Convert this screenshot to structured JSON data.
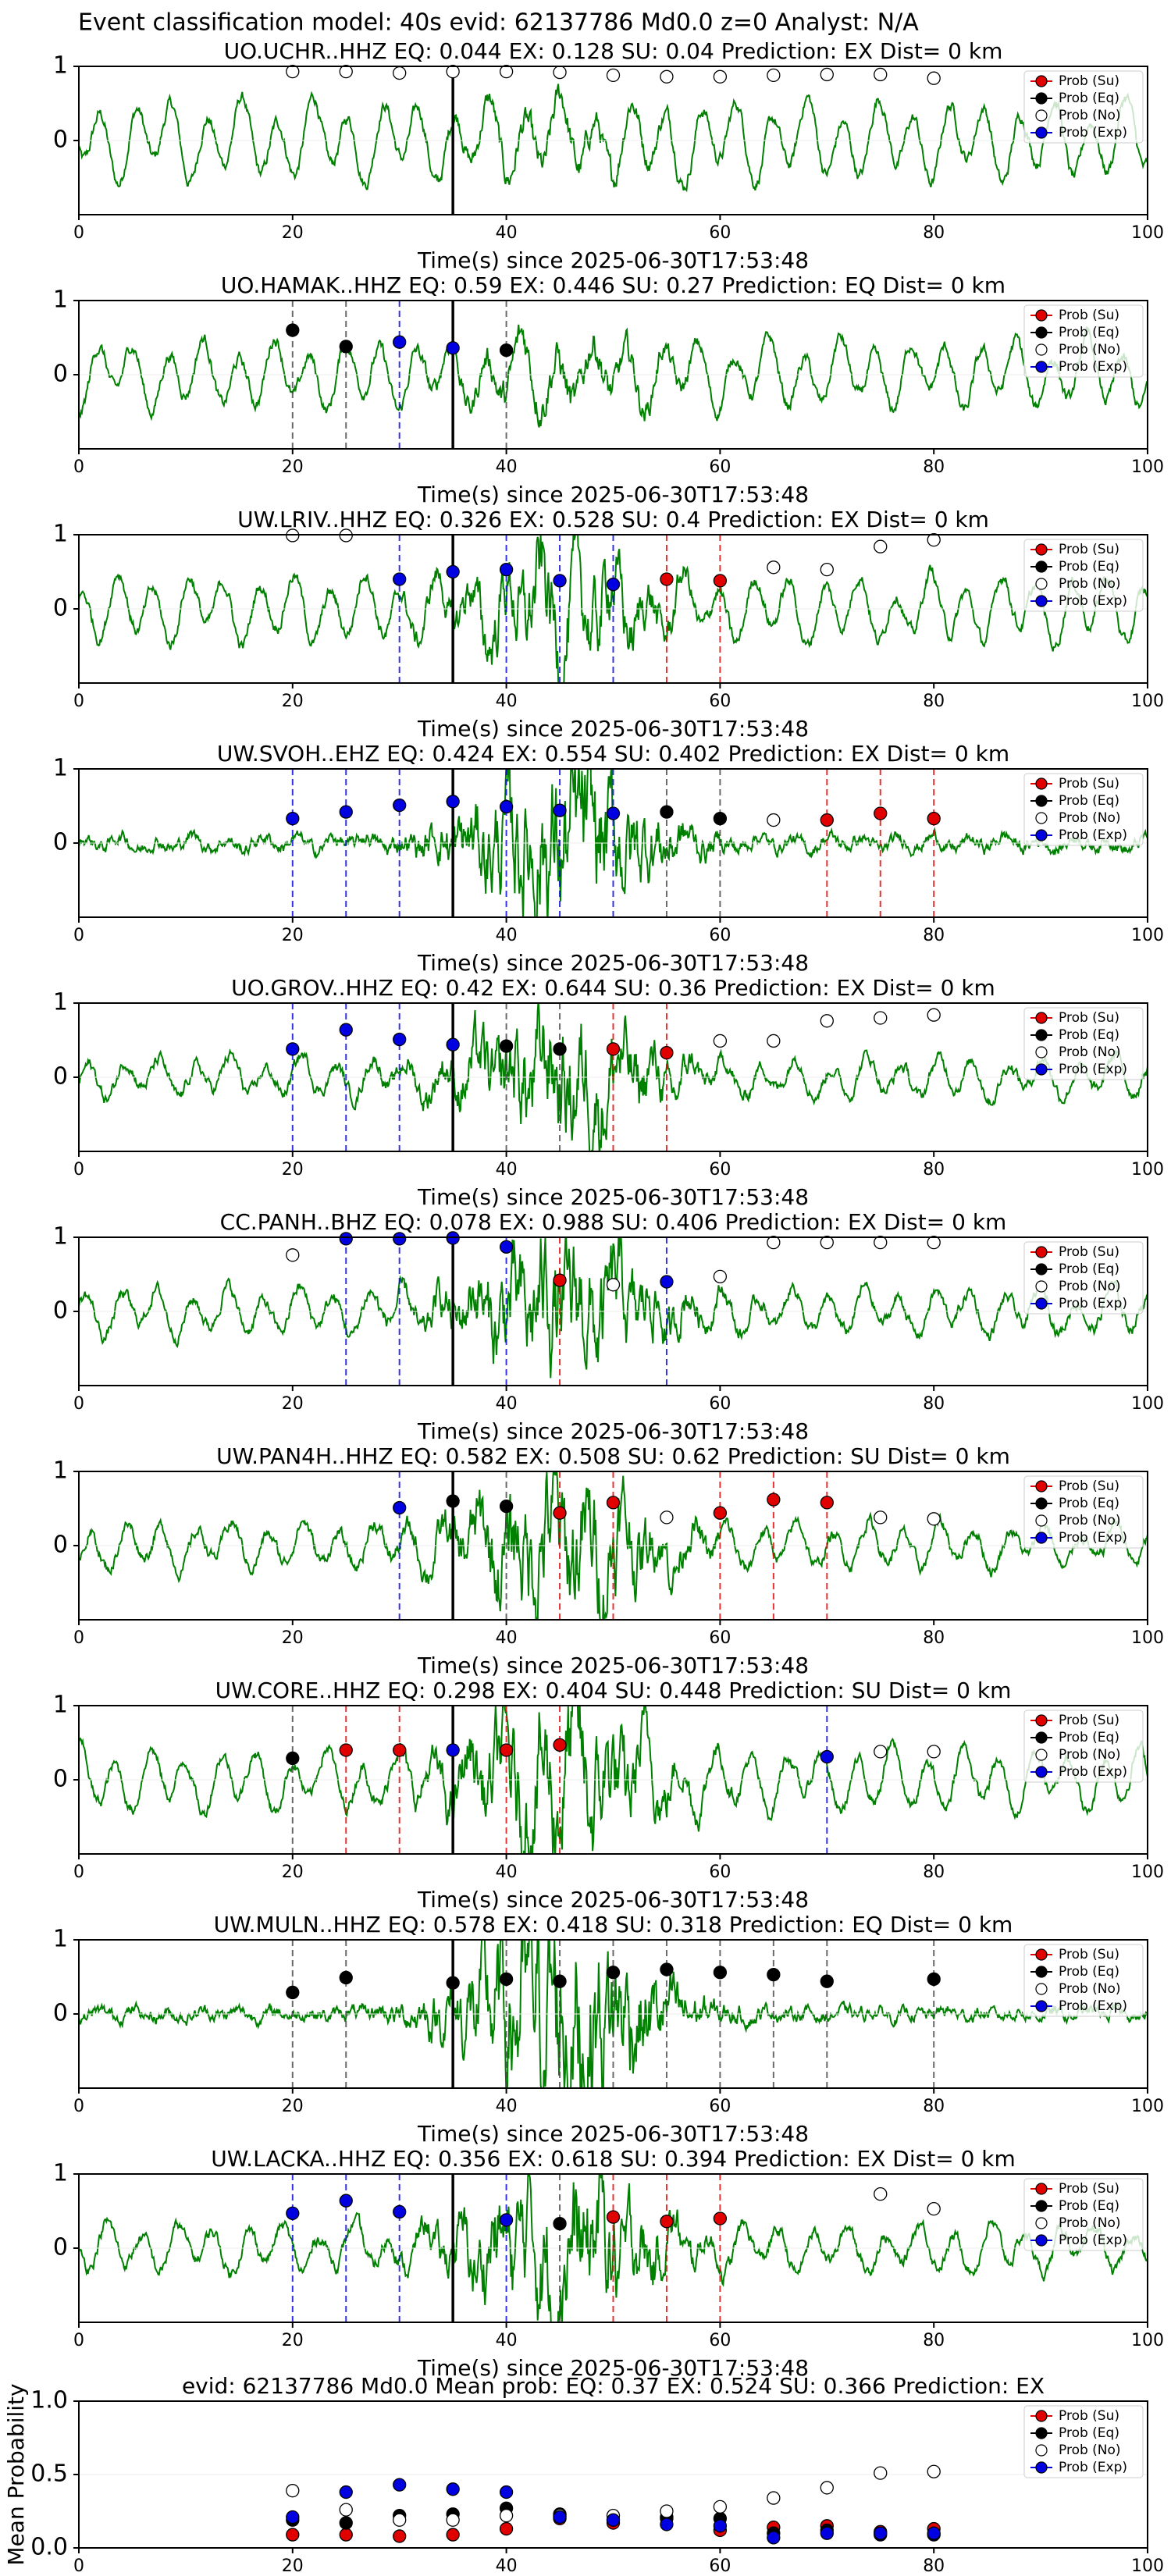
{
  "title": "Event classification model: 40s evid: 62137786 Md0.0 z=0 Analyst: N/A",
  "chart_data": [
    {
      "type": "scatter",
      "title": "UO.UCHR..HHZ   EQ: 0.044  EX: 0.128  SU: 0.04   Prediction: EX    Dist= 0 km",
      "xlabel": "Time(s) since 2025-06-30T17:53:48",
      "xlim": [
        0,
        100
      ],
      "ylim": [
        -1,
        1
      ],
      "xticks": [
        0,
        20,
        40,
        60,
        80,
        100
      ],
      "yticks": [
        0,
        1
      ],
      "vline": 35,
      "waveform_color": "#008000",
      "series": [
        {
          "name": "Prob (Su)",
          "color": "#e00000",
          "vlines": true,
          "x": [],
          "values": []
        },
        {
          "name": "Prob (Eq)",
          "color": "#000000",
          "vlines": true,
          "x": [],
          "values": []
        },
        {
          "name": "Prob (No)",
          "color": "#ffffff",
          "vlines": false,
          "x": [
            20,
            25,
            30,
            35,
            40,
            45,
            50,
            55,
            60,
            65,
            70,
            75,
            80
          ],
          "values": [
            0.93,
            0.93,
            0.91,
            0.93,
            0.93,
            0.92,
            0.88,
            0.86,
            0.86,
            0.88,
            0.89,
            0.89,
            0.84
          ]
        },
        {
          "name": "Prob (Exp)",
          "color": "#0000e0",
          "vlines": true,
          "x": [],
          "values": []
        }
      ]
    },
    {
      "type": "scatter",
      "title": "UO.HAMAK..HHZ   EQ: 0.59  EX: 0.446  SU: 0.27   Prediction: EQ    Dist= 0 km",
      "xlabel": "Time(s) since 2025-06-30T17:53:48",
      "xlim": [
        0,
        100
      ],
      "ylim": [
        -1,
        1
      ],
      "xticks": [
        0,
        20,
        40,
        60,
        80,
        100
      ],
      "yticks": [
        0,
        1
      ],
      "vline": 35,
      "waveform_color": "#008000",
      "series": [
        {
          "name": "Prob (Su)",
          "color": "#e00000",
          "vlines": true,
          "x": [],
          "values": []
        },
        {
          "name": "Prob (Eq)",
          "color": "#000000",
          "vlines": true,
          "x": [
            20,
            25,
            40
          ],
          "values": [
            0.6,
            0.38,
            0.33
          ]
        },
        {
          "name": "Prob (No)",
          "color": "#ffffff",
          "vlines": false,
          "x": [],
          "values": []
        },
        {
          "name": "Prob (Exp)",
          "color": "#0000e0",
          "vlines": true,
          "x": [
            30,
            35
          ],
          "values": [
            0.44,
            0.36
          ]
        }
      ]
    },
    {
      "type": "scatter",
      "title": "UW.LRIV..HHZ   EQ: 0.326  EX: 0.528  SU: 0.4   Prediction: EX    Dist= 0 km",
      "xlabel": "Time(s) since 2025-06-30T17:53:48",
      "xlim": [
        0,
        100
      ],
      "ylim": [
        -1,
        1
      ],
      "xticks": [
        0,
        20,
        40,
        60,
        80,
        100
      ],
      "yticks": [
        0,
        1
      ],
      "vline": 35,
      "waveform_color": "#008000",
      "series": [
        {
          "name": "Prob (Su)",
          "color": "#e00000",
          "vlines": true,
          "x": [
            55,
            60
          ],
          "values": [
            0.4,
            0.38
          ]
        },
        {
          "name": "Prob (Eq)",
          "color": "#000000",
          "vlines": true,
          "x": [],
          "values": []
        },
        {
          "name": "Prob (No)",
          "color": "#ffffff",
          "vlines": false,
          "x": [
            20,
            25,
            65,
            70,
            75,
            80
          ],
          "values": [
            0.99,
            0.99,
            0.56,
            0.53,
            0.84,
            0.93
          ]
        },
        {
          "name": "Prob (Exp)",
          "color": "#0000e0",
          "vlines": true,
          "x": [
            30,
            35,
            40,
            45,
            50
          ],
          "values": [
            0.4,
            0.5,
            0.53,
            0.38,
            0.33
          ]
        }
      ]
    },
    {
      "type": "scatter",
      "title": "UW.SVOH..EHZ   EQ: 0.424  EX: 0.554  SU: 0.402   Prediction: EX    Dist= 0 km",
      "xlabel": "Time(s) since 2025-06-30T17:53:48",
      "xlim": [
        0,
        100
      ],
      "ylim": [
        -1,
        1
      ],
      "xticks": [
        0,
        20,
        40,
        60,
        80,
        100
      ],
      "yticks": [
        0,
        1
      ],
      "vline": 35,
      "waveform_color": "#008000",
      "series": [
        {
          "name": "Prob (Su)",
          "color": "#e00000",
          "vlines": true,
          "x": [
            70,
            75,
            80
          ],
          "values": [
            0.31,
            0.4,
            0.33
          ]
        },
        {
          "name": "Prob (Eq)",
          "color": "#000000",
          "vlines": true,
          "x": [
            55,
            60
          ],
          "values": [
            0.42,
            0.33
          ]
        },
        {
          "name": "Prob (No)",
          "color": "#ffffff",
          "vlines": false,
          "x": [
            65
          ],
          "values": [
            0.31
          ]
        },
        {
          "name": "Prob (Exp)",
          "color": "#0000e0",
          "vlines": true,
          "x": [
            20,
            25,
            30,
            35,
            40,
            45,
            50
          ],
          "values": [
            0.33,
            0.42,
            0.51,
            0.56,
            0.49,
            0.44,
            0.4
          ]
        }
      ]
    },
    {
      "type": "scatter",
      "title": "UO.GROV..HHZ   EQ: 0.42  EX: 0.644  SU: 0.36   Prediction: EX    Dist= 0 km",
      "xlabel": "Time(s) since 2025-06-30T17:53:48",
      "xlim": [
        0,
        100
      ],
      "ylim": [
        -1,
        1
      ],
      "xticks": [
        0,
        20,
        40,
        60,
        80,
        100
      ],
      "yticks": [
        0,
        1
      ],
      "vline": 35,
      "waveform_color": "#008000",
      "series": [
        {
          "name": "Prob (Su)",
          "color": "#e00000",
          "vlines": true,
          "x": [
            50,
            55
          ],
          "values": [
            0.38,
            0.33
          ]
        },
        {
          "name": "Prob (Eq)",
          "color": "#000000",
          "vlines": true,
          "x": [
            40,
            45
          ],
          "values": [
            0.42,
            0.38
          ]
        },
        {
          "name": "Prob (No)",
          "color": "#ffffff",
          "vlines": false,
          "x": [
            60,
            65,
            70,
            75,
            80
          ],
          "values": [
            0.49,
            0.49,
            0.76,
            0.8,
            0.84
          ]
        },
        {
          "name": "Prob (Exp)",
          "color": "#0000e0",
          "vlines": true,
          "x": [
            20,
            25,
            30,
            35
          ],
          "values": [
            0.38,
            0.64,
            0.51,
            0.44
          ]
        }
      ]
    },
    {
      "type": "scatter",
      "title": "CC.PANH..BHZ   EQ: 0.078  EX: 0.988  SU: 0.406   Prediction: EX    Dist= 0 km",
      "xlabel": "Time(s) since 2025-06-30T17:53:48",
      "xlim": [
        0,
        100
      ],
      "ylim": [
        -1,
        1
      ],
      "xticks": [
        0,
        20,
        40,
        60,
        80,
        100
      ],
      "yticks": [
        0,
        1
      ],
      "vline": 35,
      "waveform_color": "#008000",
      "series": [
        {
          "name": "Prob (Su)",
          "color": "#e00000",
          "vlines": true,
          "x": [
            45
          ],
          "values": [
            0.42
          ]
        },
        {
          "name": "Prob (Eq)",
          "color": "#000000",
          "vlines": true,
          "x": [],
          "values": []
        },
        {
          "name": "Prob (No)",
          "color": "#ffffff",
          "vlines": false,
          "x": [
            20,
            50,
            60,
            65,
            70,
            75,
            80
          ],
          "values": [
            0.76,
            0.36,
            0.47,
            0.93,
            0.93,
            0.93,
            0.93
          ]
        },
        {
          "name": "Prob (Exp)",
          "color": "#0000e0",
          "vlines": true,
          "x": [
            25,
            30,
            35,
            40,
            55
          ],
          "values": [
            0.98,
            0.98,
            0.99,
            0.87,
            0.4
          ]
        }
      ]
    },
    {
      "type": "scatter",
      "title": "UW.PAN4H..HHZ   EQ: 0.582  EX: 0.508  SU: 0.62   Prediction: SU    Dist= 0 km",
      "xlabel": "Time(s) since 2025-06-30T17:53:48",
      "xlim": [
        0,
        100
      ],
      "ylim": [
        -1,
        1
      ],
      "xticks": [
        0,
        20,
        40,
        60,
        80,
        100
      ],
      "yticks": [
        0,
        1
      ],
      "vline": 35,
      "waveform_color": "#008000",
      "series": [
        {
          "name": "Prob (Su)",
          "color": "#e00000",
          "vlines": true,
          "x": [
            45,
            50,
            60,
            65,
            70
          ],
          "values": [
            0.44,
            0.58,
            0.44,
            0.62,
            0.58
          ]
        },
        {
          "name": "Prob (Eq)",
          "color": "#000000",
          "vlines": true,
          "x": [
            35,
            40
          ],
          "values": [
            0.6,
            0.53
          ]
        },
        {
          "name": "Prob (No)",
          "color": "#ffffff",
          "vlines": false,
          "x": [
            55,
            75,
            80
          ],
          "values": [
            0.38,
            0.38,
            0.36
          ]
        },
        {
          "name": "Prob (Exp)",
          "color": "#0000e0",
          "vlines": true,
          "x": [
            30
          ],
          "values": [
            0.51
          ]
        }
      ]
    },
    {
      "type": "scatter",
      "title": "UW.CORE..HHZ   EQ: 0.298  EX: 0.404  SU: 0.448   Prediction: SU    Dist= 0 km",
      "xlabel": "Time(s) since 2025-06-30T17:53:48",
      "xlim": [
        0,
        100
      ],
      "ylim": [
        -1,
        1
      ],
      "xticks": [
        0,
        20,
        40,
        60,
        80,
        100
      ],
      "yticks": [
        0,
        1
      ],
      "vline": 35,
      "waveform_color": "#008000",
      "series": [
        {
          "name": "Prob (Su)",
          "color": "#e00000",
          "vlines": true,
          "x": [
            25,
            30,
            40,
            45
          ],
          "values": [
            0.4,
            0.4,
            0.4,
            0.47
          ]
        },
        {
          "name": "Prob (Eq)",
          "color": "#000000",
          "vlines": true,
          "x": [
            20
          ],
          "values": [
            0.29
          ]
        },
        {
          "name": "Prob (No)",
          "color": "#ffffff",
          "vlines": false,
          "x": [
            75,
            80
          ],
          "values": [
            0.38,
            0.38
          ]
        },
        {
          "name": "Prob (Exp)",
          "color": "#0000e0",
          "vlines": true,
          "x": [
            35,
            70
          ],
          "values": [
            0.4,
            0.31
          ]
        }
      ]
    },
    {
      "type": "scatter",
      "title": "UW.MULN..HHZ   EQ: 0.578  EX: 0.418  SU: 0.318   Prediction: EQ    Dist= 0 km",
      "xlabel": "Time(s) since 2025-06-30T17:53:48",
      "xlim": [
        0,
        100
      ],
      "ylim": [
        -1,
        1
      ],
      "xticks": [
        0,
        20,
        40,
        60,
        80,
        100
      ],
      "yticks": [
        0,
        1
      ],
      "vline": 35,
      "waveform_color": "#008000",
      "series": [
        {
          "name": "Prob (Su)",
          "color": "#e00000",
          "vlines": true,
          "x": [],
          "values": []
        },
        {
          "name": "Prob (Eq)",
          "color": "#000000",
          "vlines": true,
          "x": [
            20,
            25,
            35,
            40,
            45,
            50,
            55,
            60,
            65,
            70,
            80
          ],
          "values": [
            0.29,
            0.49,
            0.42,
            0.47,
            0.44,
            0.56,
            0.6,
            0.56,
            0.53,
            0.44,
            0.47
          ]
        },
        {
          "name": "Prob (No)",
          "color": "#ffffff",
          "vlines": false,
          "x": [],
          "values": []
        },
        {
          "name": "Prob (Exp)",
          "color": "#0000e0",
          "vlines": true,
          "x": [],
          "values": []
        }
      ]
    },
    {
      "type": "scatter",
      "title": "UW.LACKA..HHZ   EQ: 0.356  EX: 0.618  SU: 0.394   Prediction: EX    Dist= 0 km",
      "xlabel": "Time(s) since 2025-06-30T17:53:48",
      "xlim": [
        0,
        100
      ],
      "ylim": [
        -1,
        1
      ],
      "xticks": [
        0,
        20,
        40,
        60,
        80,
        100
      ],
      "yticks": [
        0,
        1
      ],
      "vline": 35,
      "waveform_color": "#008000",
      "series": [
        {
          "name": "Prob (Su)",
          "color": "#e00000",
          "vlines": true,
          "x": [
            50,
            55,
            60
          ],
          "values": [
            0.42,
            0.36,
            0.4
          ]
        },
        {
          "name": "Prob (Eq)",
          "color": "#000000",
          "vlines": true,
          "x": [
            45
          ],
          "values": [
            0.33
          ]
        },
        {
          "name": "Prob (No)",
          "color": "#ffffff",
          "vlines": false,
          "x": [
            75,
            80
          ],
          "values": [
            0.73,
            0.53
          ]
        },
        {
          "name": "Prob (Exp)",
          "color": "#0000e0",
          "vlines": true,
          "x": [
            20,
            25,
            30,
            40
          ],
          "values": [
            0.47,
            0.64,
            0.49,
            0.38
          ]
        }
      ]
    },
    {
      "type": "scatter",
      "title": "evid: 62137786  Md0.0   Mean prob:    EQ: 0.37  EX: 0.524  SU: 0.366   Prediction: EX",
      "ylabel": "Mean Probability",
      "xlim": [
        0,
        100
      ],
      "ylim": [
        0,
        1
      ],
      "xticks": [
        0,
        20,
        40,
        60,
        80,
        100
      ],
      "yticks": [
        {
          "value": 0,
          "label": "0.0"
        },
        {
          "value": 0.5,
          "label": "0.5"
        },
        {
          "value": 1,
          "label": "1.0"
        }
      ],
      "series": [
        {
          "name": "Prob (Su)",
          "color": "#e00000",
          "vlines": false,
          "x": [
            20,
            25,
            30,
            35,
            40,
            45,
            50,
            55,
            60,
            65,
            70,
            75,
            80
          ],
          "values": [
            0.09,
            0.09,
            0.08,
            0.09,
            0.13,
            0.2,
            0.17,
            0.2,
            0.12,
            0.14,
            0.15,
            0.11,
            0.13
          ]
        },
        {
          "name": "Prob (Eq)",
          "color": "#000000",
          "vlines": false,
          "x": [
            20,
            25,
            30,
            35,
            40,
            45,
            50,
            55,
            60,
            65,
            70,
            75,
            80
          ],
          "values": [
            0.19,
            0.17,
            0.22,
            0.23,
            0.27,
            0.23,
            0.19,
            0.21,
            0.2,
            0.1,
            0.12,
            0.09,
            0.09
          ]
        },
        {
          "name": "Prob (No)",
          "color": "#ffffff",
          "vlines": false,
          "x": [
            20,
            25,
            30,
            35,
            40,
            45,
            50,
            55,
            60,
            65,
            70,
            75,
            80
          ],
          "values": [
            0.39,
            0.26,
            0.19,
            0.19,
            0.22,
            0.22,
            0.22,
            0.25,
            0.28,
            0.34,
            0.41,
            0.51,
            0.52
          ]
        },
        {
          "name": "Prob (Exp)",
          "color": "#0000e0",
          "vlines": false,
          "x": [
            20,
            25,
            30,
            35,
            40,
            45,
            50,
            55,
            60,
            65,
            70,
            75,
            80
          ],
          "values": [
            0.21,
            0.38,
            0.43,
            0.4,
            0.38,
            0.21,
            0.19,
            0.16,
            0.15,
            0.07,
            0.1,
            0.1,
            0.1
          ]
        }
      ]
    }
  ]
}
